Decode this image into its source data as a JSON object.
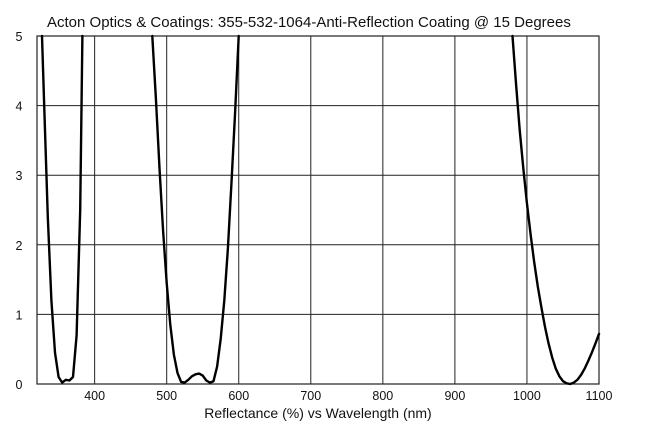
{
  "chart_data": {
    "type": "line",
    "title": "Acton Optics & Coatings: 355-532-1064-Anti-Reflection Coating @ 15 Degrees",
    "xlabel": "Reflectance (%)  vs  Wavelength (nm)",
    "ylabel": "",
    "xlim": [
      320,
      1100
    ],
    "ylim": [
      0,
      5
    ],
    "x_ticks": [
      400,
      500,
      600,
      700,
      800,
      900,
      1000,
      1100
    ],
    "y_ticks": [
      0,
      1,
      2,
      3,
      4,
      5
    ],
    "grid": true,
    "legend": "none",
    "line_color": "#000000",
    "series": [
      {
        "x": [
          327,
          330,
          335,
          340,
          345,
          350,
          355,
          360,
          365,
          370,
          375,
          380,
          383,
          480,
          485,
          490,
          495,
          500,
          505,
          510,
          515,
          520,
          525,
          530,
          535,
          540,
          545,
          550,
          555,
          560,
          565,
          570,
          575,
          580,
          585,
          590,
          595,
          600,
          980,
          985,
          990,
          995,
          1000,
          1005,
          1010,
          1015,
          1020,
          1025,
          1030,
          1035,
          1040,
          1045,
          1050,
          1055,
          1060,
          1065,
          1070,
          1075,
          1080,
          1085,
          1090,
          1095,
          1100
        ],
        "y": [
          5.0,
          4.0,
          2.4,
          1.2,
          0.45,
          0.1,
          0.02,
          0.06,
          0.05,
          0.1,
          0.7,
          2.5,
          5.0,
          5.0,
          4.1,
          3.1,
          2.2,
          1.45,
          0.85,
          0.42,
          0.16,
          0.03,
          0.02,
          0.06,
          0.11,
          0.14,
          0.15,
          0.12,
          0.05,
          0.02,
          0.04,
          0.25,
          0.65,
          1.2,
          1.95,
          2.9,
          3.9,
          5.0,
          5.0,
          4.3,
          3.65,
          3.1,
          2.6,
          2.15,
          1.75,
          1.4,
          1.1,
          0.82,
          0.58,
          0.38,
          0.22,
          0.11,
          0.04,
          0.01,
          0.0,
          0.02,
          0.06,
          0.13,
          0.22,
          0.33,
          0.45,
          0.58,
          0.72
        ]
      }
    ]
  }
}
